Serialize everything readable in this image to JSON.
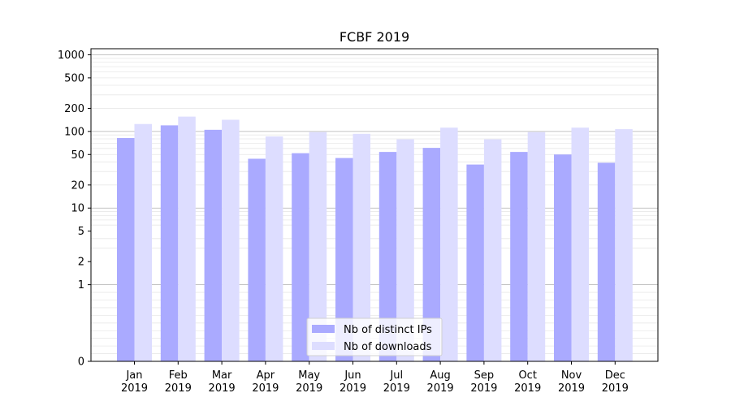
{
  "chart_data": {
    "type": "bar",
    "title": "FCBF 2019",
    "xlabel": "",
    "ylabel": "",
    "yscale": "symlog",
    "ylim": [
      0,
      1200
    ],
    "yticks": [
      0,
      1,
      2,
      5,
      10,
      20,
      50,
      100,
      200,
      500,
      1000
    ],
    "yticklabels": [
      "0",
      "1",
      "2",
      "5",
      "10",
      "20",
      "50",
      "100",
      "200",
      "500",
      "1000"
    ],
    "categories": [
      "Jan\n2019",
      "Feb\n2019",
      "Mar\n2019",
      "Apr\n2019",
      "May\n2019",
      "Jun\n2019",
      "Jul\n2019",
      "Aug\n2019",
      "Sep\n2019",
      "Oct\n2019",
      "Nov\n2019",
      "Dec\n2019"
    ],
    "category_lines": [
      [
        "Jan",
        "2019"
      ],
      [
        "Feb",
        "2019"
      ],
      [
        "Mar",
        "2019"
      ],
      [
        "Apr",
        "2019"
      ],
      [
        "May",
        "2019"
      ],
      [
        "Jun",
        "2019"
      ],
      [
        "Jul",
        "2019"
      ],
      [
        "Aug",
        "2019"
      ],
      [
        "Sep",
        "2019"
      ],
      [
        "Oct",
        "2019"
      ],
      [
        "Nov",
        "2019"
      ],
      [
        "Dec",
        "2019"
      ]
    ],
    "series": [
      {
        "name": "Nb of distinct IPs",
        "color": "#aaaaff",
        "values": [
          82,
          120,
          105,
          44,
          52,
          45,
          54,
          61,
          37,
          54,
          50,
          39
        ]
      },
      {
        "name": "Nb of downloads",
        "color": "#ddddff",
        "values": [
          125,
          156,
          142,
          86,
          98,
          93,
          79,
          112,
          79,
          98,
          112,
          107
        ]
      }
    ],
    "grid": true,
    "legend": "bottom-center"
  }
}
